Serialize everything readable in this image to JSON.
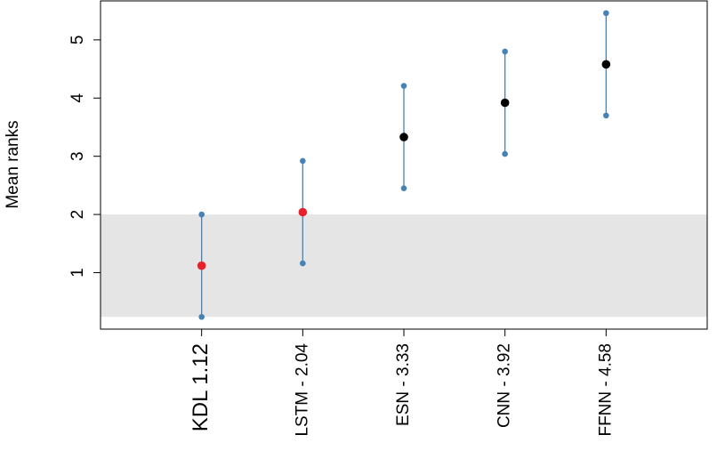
{
  "chart_data": {
    "type": "interval",
    "y_label": "Mean ranks",
    "categories": [
      "KDL   1.12",
      "LSTM - 2.04",
      "ESN - 3.33",
      "CNN - 3.92",
      "FFNN - 4.58"
    ],
    "values": [
      1.12,
      2.04,
      3.33,
      3.92,
      4.58
    ],
    "lower": [
      0.24,
      1.16,
      2.45,
      3.04,
      3.7
    ],
    "upper": [
      2.0,
      2.92,
      4.21,
      4.8,
      5.46
    ],
    "point_colors": [
      "#e8202a",
      "#e8202a",
      "#000000",
      "#000000",
      "#000000"
    ],
    "interval_color": "#4682b4",
    "band": {
      "ymin": 0.24,
      "ymax": 2.0,
      "color": "#e5e5e5"
    },
    "ylim": [
      0.03,
      5.67
    ],
    "yticks": [
      1,
      2,
      3,
      4,
      5
    ]
  }
}
